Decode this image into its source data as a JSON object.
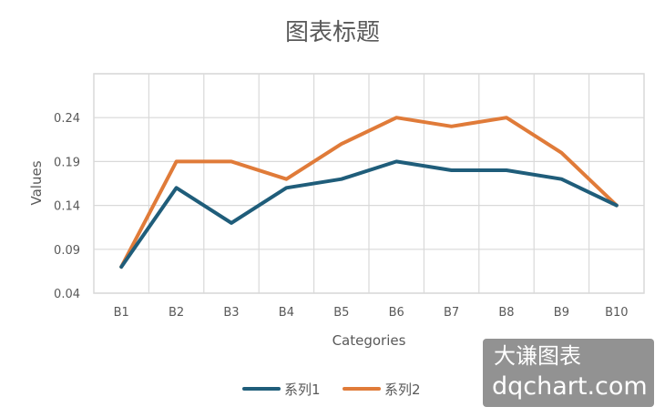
{
  "chart_data": {
    "type": "line",
    "title": "图表标题",
    "xlabel": "Categories",
    "ylabel": "Values",
    "categories": [
      "B1",
      "B2",
      "B3",
      "B4",
      "B5",
      "B6",
      "B7",
      "B8",
      "B9",
      "B10"
    ],
    "y_ticks": [
      "0.04",
      "0.09",
      "0.14",
      "0.19",
      "0.24"
    ],
    "ylim": [
      0.04,
      0.29
    ],
    "grid": true,
    "legend_position": "bottom",
    "series": [
      {
        "name": "系列1",
        "color": "#1f5d7a",
        "values": [
          0.07,
          0.16,
          0.12,
          0.16,
          0.17,
          0.19,
          0.18,
          0.18,
          0.17,
          0.14
        ]
      },
      {
        "name": "系列2",
        "color": "#e07b39",
        "values": [
          0.07,
          0.19,
          0.19,
          0.17,
          0.21,
          0.24,
          0.23,
          0.24,
          0.2,
          0.14
        ]
      }
    ]
  },
  "watermark": {
    "line1": "大谦图表",
    "line2": "dqchart.com"
  }
}
